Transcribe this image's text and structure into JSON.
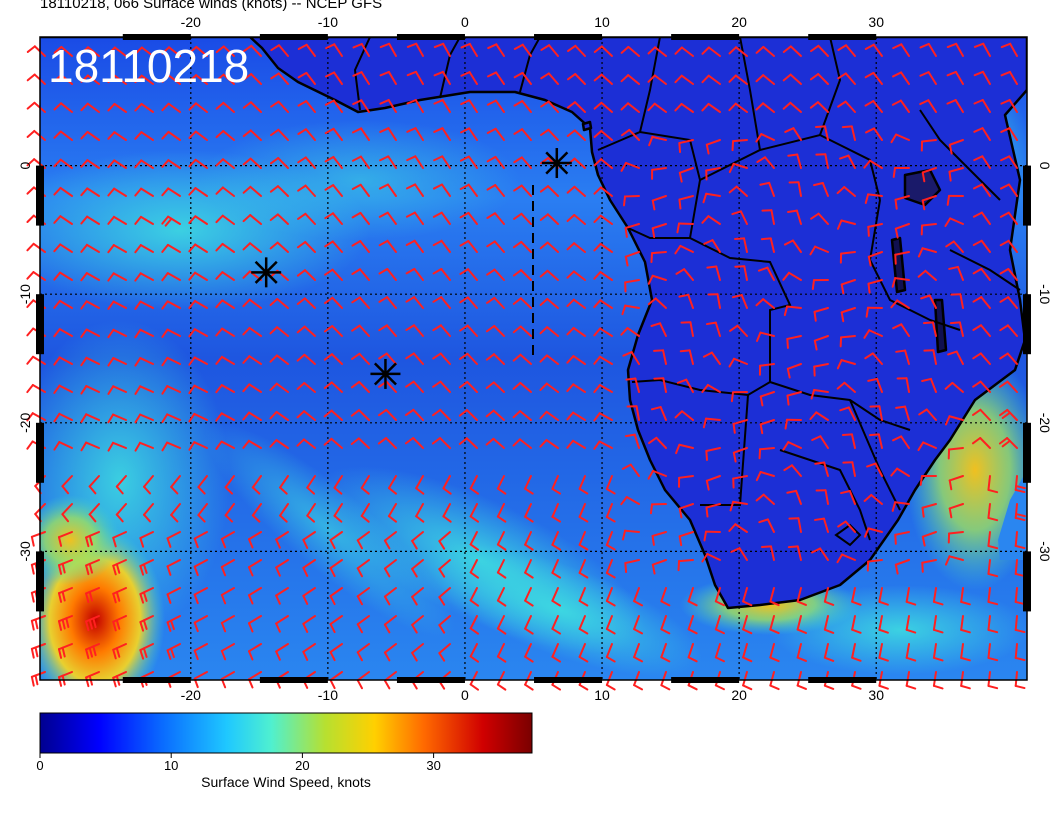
{
  "header": {
    "title": "18110218, 066 Surface winds (knots) -- NCEP GFS"
  },
  "stamp": "18110218",
  "map": {
    "lon_range": [
      -31,
      41
    ],
    "lat_range": [
      -40,
      10
    ],
    "lon_ticks": [
      "-20",
      "-10",
      "0",
      "10",
      "20",
      "30"
    ],
    "lat_ticks": [
      "0",
      "-10",
      "-20",
      "-30"
    ],
    "gridlines": "dotted every 10 degrees",
    "barb_color": "#ff2020",
    "land_color": "#1c2fd6"
  },
  "markers": [
    {
      "name": "asterisk-1",
      "lon": -14.5,
      "lat": -8.3
    },
    {
      "name": "asterisk-2",
      "lon": -5.8,
      "lat": -16.2
    },
    {
      "name": "asterisk-3",
      "lon": 6.7,
      "lat": 0.2
    }
  ],
  "colorbar": {
    "label": "Surface Wind Speed, knots",
    "min": 0,
    "max": 37.5,
    "ticks": [
      "0",
      "10",
      "20",
      "30"
    ],
    "tick_values": [
      0,
      10,
      20,
      30
    ],
    "colors": [
      "#00008f",
      "#0000ff",
      "#0a6cff",
      "#1fc8ff",
      "#4ff0d0",
      "#b7e030",
      "#ffd000",
      "#ff6a00",
      "#d00000",
      "#7a0000"
    ]
  }
}
